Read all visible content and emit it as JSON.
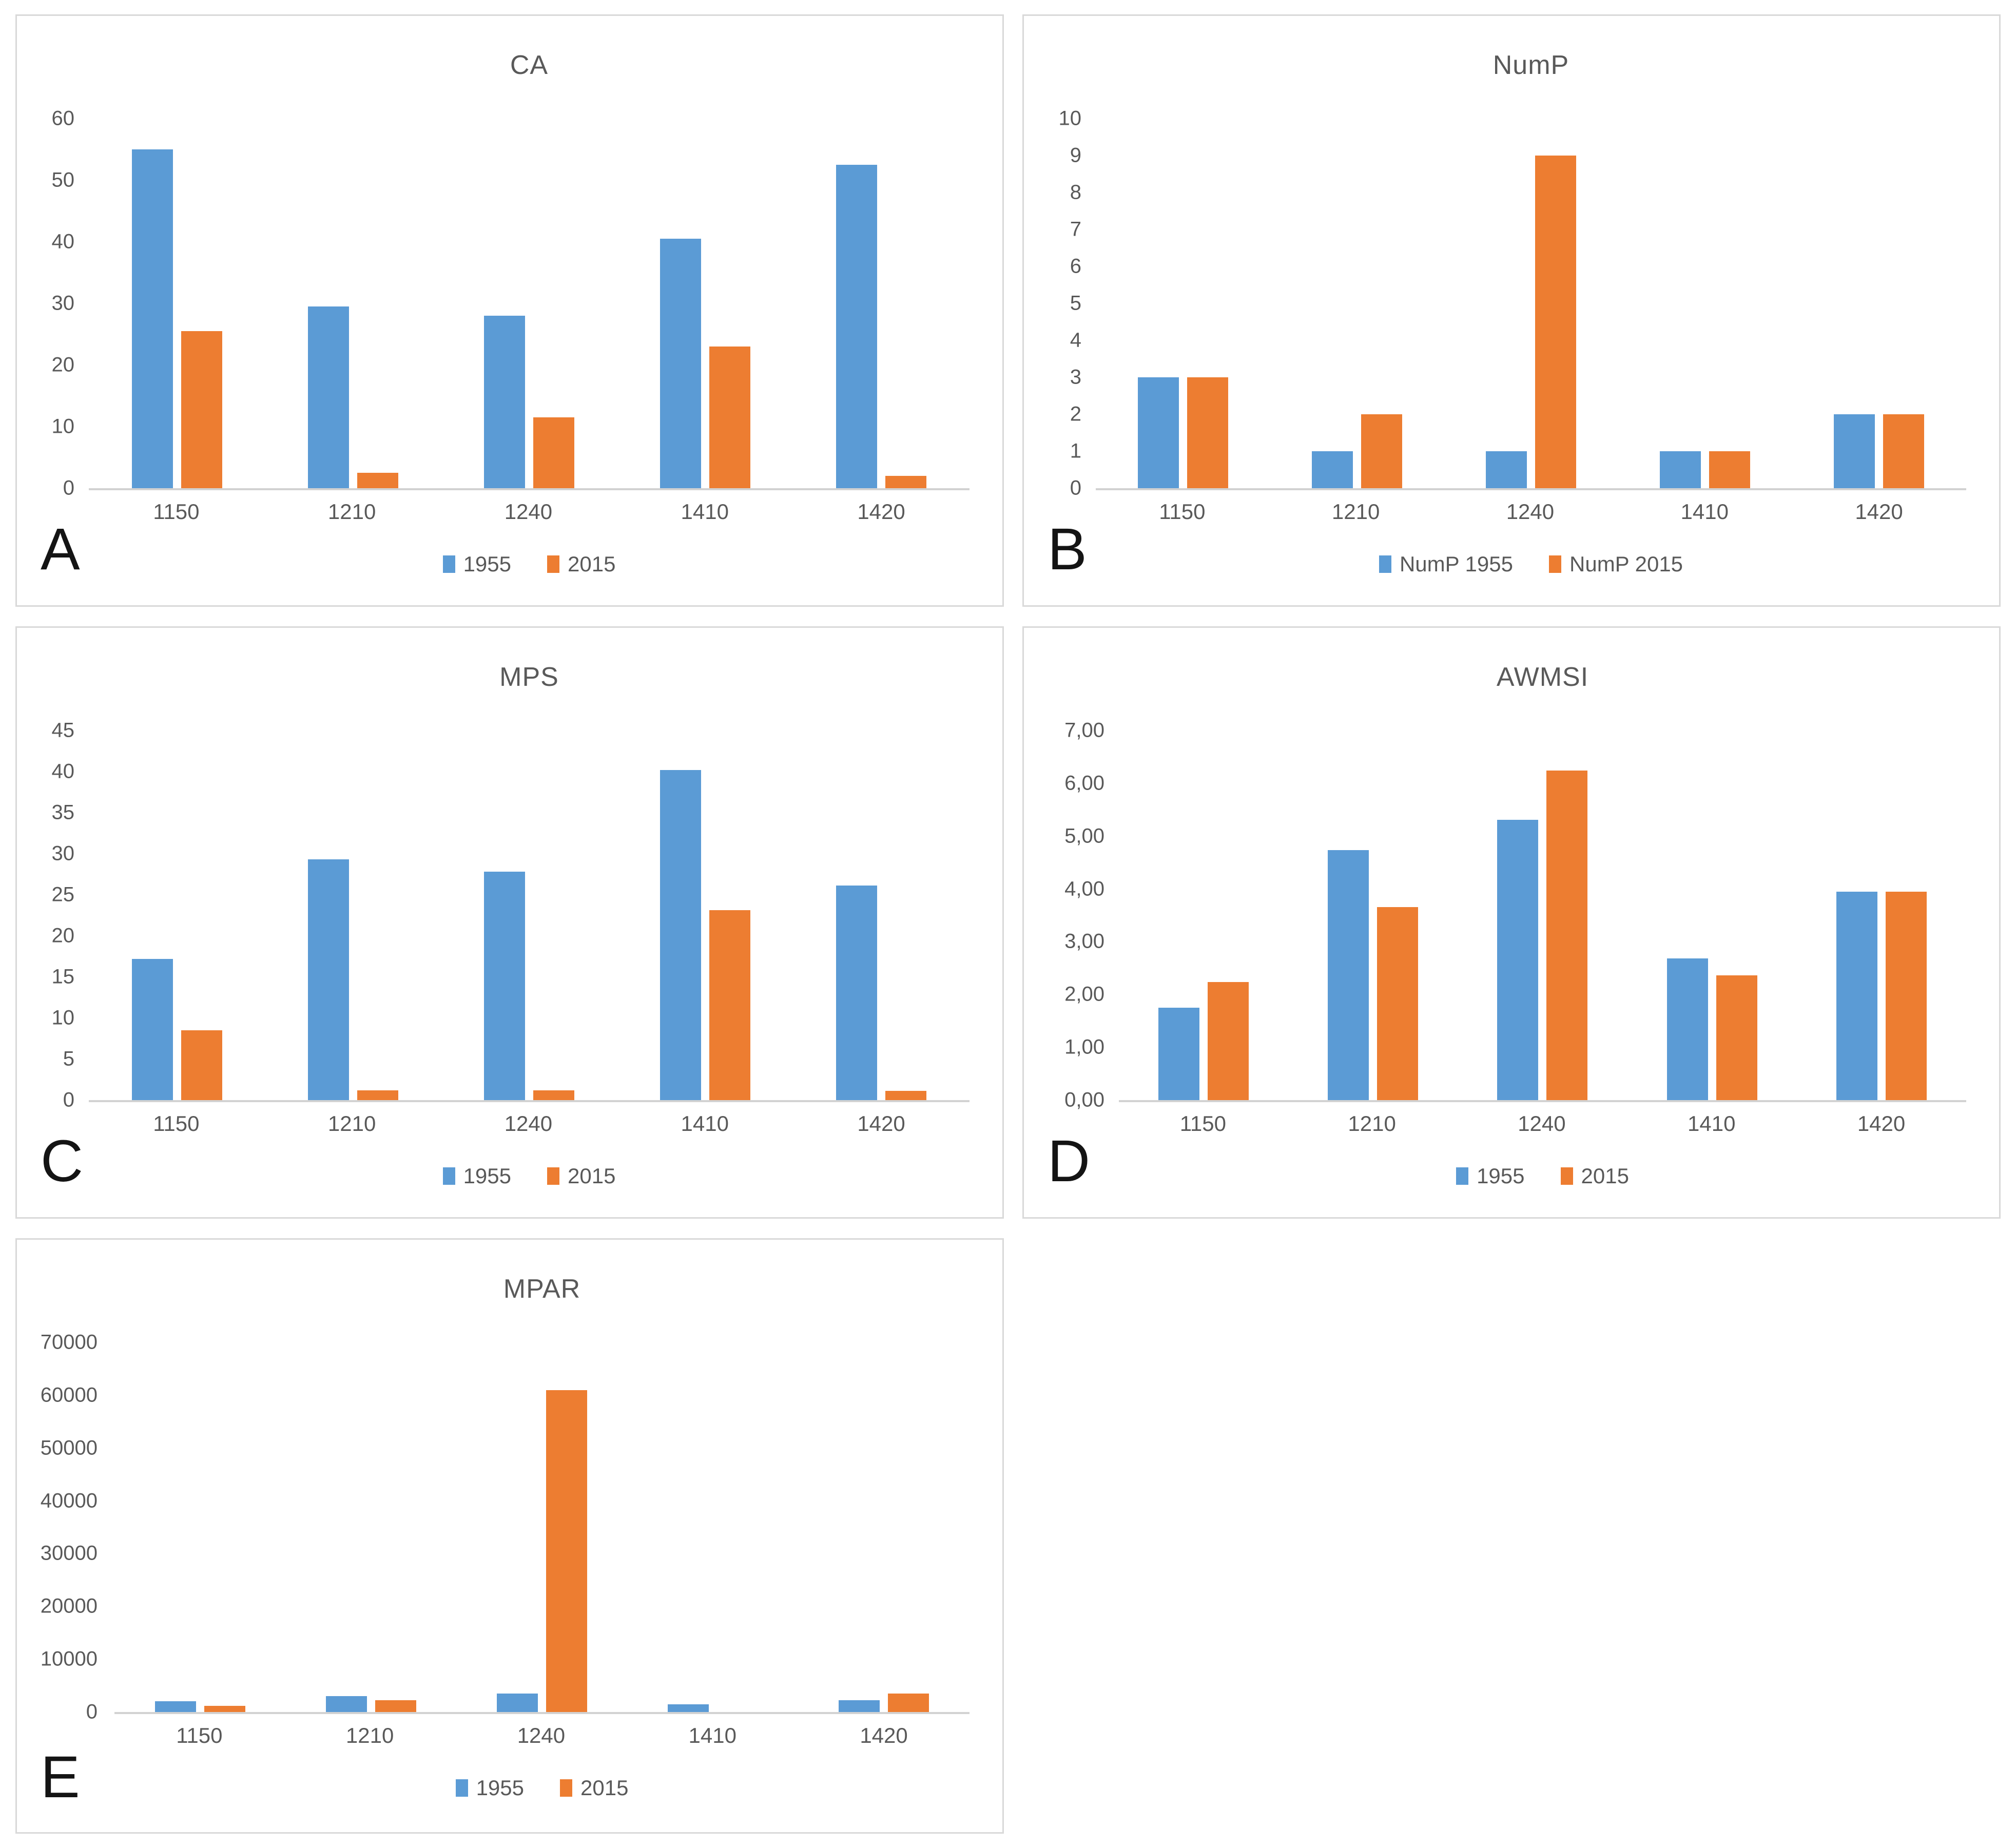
{
  "figure": {
    "panel_letters": [
      "A",
      "B",
      "C",
      "D",
      "E"
    ]
  },
  "colors": {
    "series_1955": "#5B9BD5",
    "series_2015": "#ED7D31",
    "axis_line": "#D2D2D2",
    "panel_border": "#D9D9D9",
    "text": "#595959",
    "panel_letter": "#141414"
  },
  "chart_data": [
    {
      "panel": "A",
      "type": "bar",
      "title": "CA",
      "categories": [
        "1150",
        "1210",
        "1240",
        "1410",
        "1420"
      ],
      "series": [
        {
          "name": "1955",
          "color": "#5B9BD5",
          "values": [
            55,
            29.5,
            28,
            40.5,
            52.5
          ]
        },
        {
          "name": "2015",
          "color": "#ED7D31",
          "values": [
            25.5,
            2.5,
            11.5,
            23,
            2
          ]
        }
      ],
      "xlabel": "",
      "ylabel": "",
      "ylim": [
        0,
        60
      ],
      "ytick_labels": [
        "60",
        "50",
        "40",
        "30",
        "20",
        "10",
        "0"
      ],
      "grid": false,
      "legend_position": "bottom",
      "legend": [
        "1955",
        "2015"
      ]
    },
    {
      "panel": "B",
      "type": "bar",
      "title": "NumP",
      "categories": [
        "1150",
        "1210",
        "1240",
        "1410",
        "1420"
      ],
      "series": [
        {
          "name": "NumP 1955",
          "color": "#5B9BD5",
          "values": [
            3,
            1,
            1,
            1,
            2
          ]
        },
        {
          "name": "NumP 2015",
          "color": "#ED7D31",
          "values": [
            3,
            2,
            9,
            1,
            2
          ]
        }
      ],
      "xlabel": "",
      "ylabel": "",
      "ylim": [
        0,
        10
      ],
      "ytick_labels": [
        "10",
        "9",
        "8",
        "7",
        "6",
        "5",
        "4",
        "3",
        "2",
        "1",
        "0"
      ],
      "grid": false,
      "legend_position": "bottom",
      "legend": [
        "NumP 1955",
        "NumP 2015"
      ]
    },
    {
      "panel": "C",
      "type": "bar",
      "title": "MPS",
      "categories": [
        "1150",
        "1210",
        "1240",
        "1410",
        "1420"
      ],
      "series": [
        {
          "name": "1955",
          "color": "#5B9BD5",
          "values": [
            17.2,
            29.3,
            27.8,
            40.2,
            26.1
          ]
        },
        {
          "name": "2015",
          "color": "#ED7D31",
          "values": [
            8.5,
            1.2,
            1.2,
            23.1,
            1.1
          ]
        }
      ],
      "xlabel": "",
      "ylabel": "",
      "ylim": [
        0,
        45
      ],
      "ytick_labels": [
        "45",
        "40",
        "35",
        "30",
        "25",
        "20",
        "15",
        "10",
        "5",
        "0"
      ],
      "grid": false,
      "legend_position": "bottom",
      "legend": [
        "1955",
        "2015"
      ]
    },
    {
      "panel": "D",
      "type": "bar",
      "title": "AWMSI",
      "categories": [
        "1150",
        "1210",
        "1240",
        "1410",
        "1420"
      ],
      "series": [
        {
          "name": "1955",
          "color": "#5B9BD5",
          "values": [
            1.75,
            4.73,
            5.31,
            2.68,
            3.95
          ]
        },
        {
          "name": "2015",
          "color": "#ED7D31",
          "values": [
            2.24,
            3.66,
            6.24,
            2.36,
            3.95
          ]
        }
      ],
      "xlabel": "",
      "ylabel": "",
      "ylim": [
        0,
        7
      ],
      "ytick_labels": [
        "7,00",
        "6,00",
        "5,00",
        "4,00",
        "3,00",
        "2,00",
        "1,00",
        "0,00"
      ],
      "grid": false,
      "legend_position": "bottom",
      "legend": [
        "1955",
        "2015"
      ]
    },
    {
      "panel": "E",
      "type": "bar",
      "title": "MPAR",
      "categories": [
        "1150",
        "1210",
        "1240",
        "1410",
        "1420"
      ],
      "series": [
        {
          "name": "1955",
          "color": "#5B9BD5",
          "values": [
            2000,
            3000,
            3500,
            1500,
            2200
          ]
        },
        {
          "name": "2015",
          "color": "#ED7D31",
          "values": [
            1200,
            2200,
            61000,
            0,
            3500
          ]
        }
      ],
      "xlabel": "",
      "ylabel": "",
      "ylim": [
        0,
        70000
      ],
      "ytick_labels": [
        "70000",
        "60000",
        "50000",
        "40000",
        "30000",
        "20000",
        "10000",
        "0"
      ],
      "grid": false,
      "legend_position": "bottom",
      "legend": [
        "1955",
        "2015"
      ]
    }
  ]
}
